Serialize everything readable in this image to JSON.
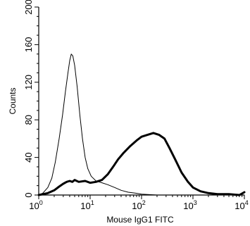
{
  "chart_data": {
    "type": "line",
    "title": "",
    "xlabel": "Mouse IgG1 FITC",
    "ylabel": "Counts",
    "xscale": "log",
    "xlim": [
      1,
      10000
    ],
    "ylim": [
      0,
      200
    ],
    "x_ticks": [
      {
        "base": "10",
        "exp": "0",
        "value": 1
      },
      {
        "base": "10",
        "exp": "1",
        "value": 10
      },
      {
        "base": "10",
        "exp": "2",
        "value": 100
      },
      {
        "base": "10",
        "exp": "3",
        "value": 1000
      },
      {
        "base": "10",
        "exp": "4",
        "value": 10000
      }
    ],
    "y_ticks": [
      {
        "label": "0",
        "value": 0
      },
      {
        "label": "40",
        "value": 40
      },
      {
        "label": "80",
        "value": 80
      },
      {
        "label": "120",
        "value": 120
      },
      {
        "label": "160",
        "value": 160
      },
      {
        "label": "200",
        "value": 200
      }
    ],
    "grid": false,
    "legend": "none",
    "series": [
      {
        "color": "#000000",
        "style": "thin",
        "points": [
          [
            1.0,
            0
          ],
          [
            1.2,
            2
          ],
          [
            1.5,
            8
          ],
          [
            1.8,
            18
          ],
          [
            2.1,
            35
          ],
          [
            2.5,
            60
          ],
          [
            2.9,
            85
          ],
          [
            3.3,
            110
          ],
          [
            3.7,
            130
          ],
          [
            4.0,
            143
          ],
          [
            4.3,
            150
          ],
          [
            4.6,
            148
          ],
          [
            5.0,
            138
          ],
          [
            5.6,
            115
          ],
          [
            6.3,
            85
          ],
          [
            7.1,
            60
          ],
          [
            8.0,
            40
          ],
          [
            9.0,
            28
          ],
          [
            10.5,
            20
          ],
          [
            13,
            15
          ],
          [
            17,
            13
          ],
          [
            22,
            11
          ],
          [
            30,
            8
          ],
          [
            40,
            5
          ],
          [
            55,
            3
          ],
          [
            75,
            2
          ],
          [
            100,
            1
          ],
          [
            200,
            0
          ],
          [
            10000,
            0
          ]
        ]
      },
      {
        "color": "#000000",
        "style": "thick",
        "points": [
          [
            1.0,
            0
          ],
          [
            1.5,
            2
          ],
          [
            2.0,
            5
          ],
          [
            2.5,
            9
          ],
          [
            3.0,
            12
          ],
          [
            3.5,
            14
          ],
          [
            4.0,
            15
          ],
          [
            4.5,
            14
          ],
          [
            5.0,
            16
          ],
          [
            6.0,
            14
          ],
          [
            8.0,
            15
          ],
          [
            10,
            13
          ],
          [
            13,
            14
          ],
          [
            17,
            16
          ],
          [
            22,
            22
          ],
          [
            28,
            30
          ],
          [
            35,
            38
          ],
          [
            45,
            45
          ],
          [
            60,
            52
          ],
          [
            80,
            58
          ],
          [
            100,
            62
          ],
          [
            130,
            64
          ],
          [
            170,
            66
          ],
          [
            220,
            64
          ],
          [
            280,
            60
          ],
          [
            350,
            50
          ],
          [
            450,
            38
          ],
          [
            600,
            24
          ],
          [
            800,
            14
          ],
          [
            1000,
            8
          ],
          [
            1400,
            4
          ],
          [
            2000,
            2
          ],
          [
            3000,
            1
          ],
          [
            5000,
            1
          ],
          [
            8000,
            0
          ],
          [
            10000,
            3
          ]
        ]
      }
    ]
  }
}
